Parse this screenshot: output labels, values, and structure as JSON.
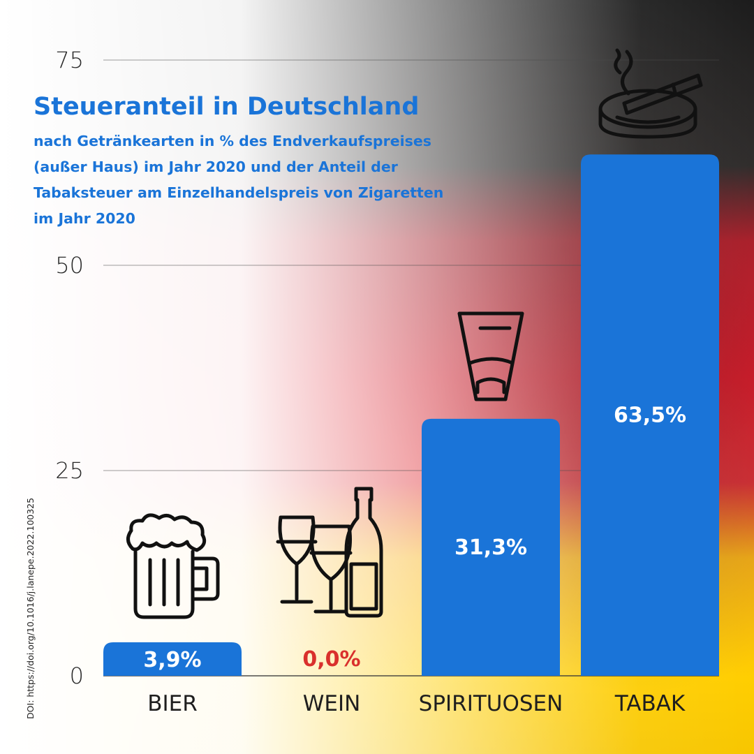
{
  "chart_data": {
    "type": "bar",
    "title": "Steueranteil in Deutschland",
    "subtitle": "nach Getränkearten in % des Endverkaufspreises (außer Haus) im Jahr 2020 und der Anteil der Tabaksteuer am Einzelhandelspreis von Zigaretten im Jahr 2020",
    "categories": [
      "BIER",
      "WEIN",
      "SPIRITUOSEN",
      "TABAK"
    ],
    "values": [
      3.9,
      0.0,
      31.3,
      63.5
    ],
    "value_labels": [
      "3,9%",
      "0,0%",
      "31,3%",
      "63,5%"
    ],
    "icons": [
      "beer-mug-icon",
      "wine-glasses-bottle-icon",
      "shot-glass-icon",
      "ashtray-cigarette-icon"
    ],
    "ylim": [
      0,
      75
    ],
    "yticks": [
      0,
      25,
      50,
      75
    ],
    "ytick_labels": [
      "0",
      "25",
      "50",
      "75"
    ],
    "grid": true,
    "xlabel": "",
    "ylabel": "",
    "colors": {
      "bar": "#1a74d8",
      "title": "#1a74d8",
      "value_label": "#ffffff",
      "zero_value_label": "#d9302c",
      "flag_black": "#1c1c1c",
      "flag_red": "#dd1f2e",
      "flag_gold": "#ffce00"
    }
  },
  "source": "DOI: https://doi.org/10.1016/j.lanepe.2022.100325"
}
